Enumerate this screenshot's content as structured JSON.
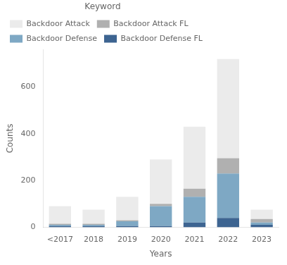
{
  "chart_data": {
    "type": "bar",
    "stacked": true,
    "xlabel": "Years",
    "ylabel": "Counts",
    "legend_title": "Keyword",
    "legend": "upper left",
    "grid": false,
    "categories": [
      "<2017",
      "2018",
      "2019",
      "2020",
      "2021",
      "2022",
      "2023"
    ],
    "series": [
      {
        "name": "Backdoor Defense FL",
        "color": "#3d6491",
        "values": [
          5,
          5,
          5,
          5,
          20,
          40,
          10
        ]
      },
      {
        "name": "Backdoor Defense",
        "color": "#7ea8c4",
        "values": [
          5,
          5,
          20,
          85,
          110,
          190,
          10
        ]
      },
      {
        "name": "Backdoor Attack FL",
        "color": "#b0b0b0",
        "values": [
          5,
          5,
          5,
          10,
          35,
          65,
          15
        ]
      },
      {
        "name": "Backdoor Attack",
        "color": "#ebebeb",
        "values": [
          75,
          60,
          100,
          190,
          265,
          425,
          40
        ]
      }
    ],
    "ylim": [
      0,
      760
    ],
    "yticks": [
      0,
      200,
      400,
      600
    ]
  }
}
